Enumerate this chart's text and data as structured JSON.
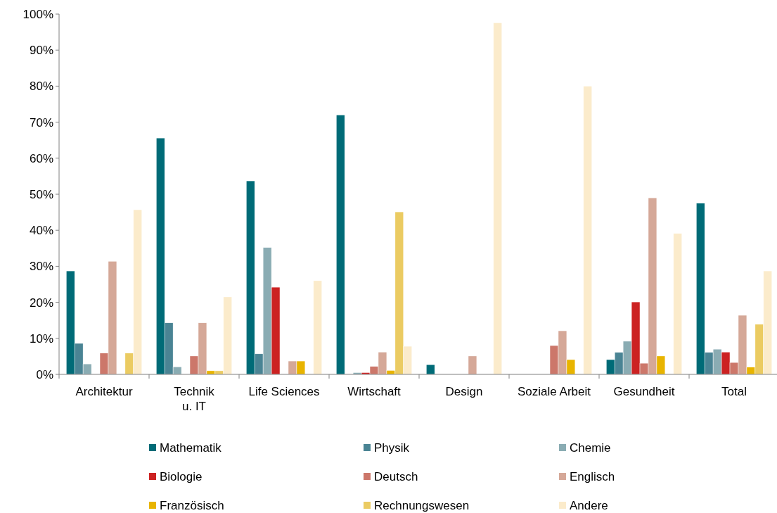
{
  "chart_data": {
    "type": "bar",
    "categories": [
      "Architektur",
      "Technik\nu. IT",
      "Life Sciences",
      "Wirtschaft",
      "Design",
      "Soziale Arbeit",
      "Gesundheit",
      "Total"
    ],
    "series": [
      {
        "name": "Mathematik",
        "color": "#006b77",
        "values": [
          28.7,
          65.6,
          53.7,
          72,
          2.7,
          0,
          4.1,
          47.5
        ]
      },
      {
        "name": "Physik",
        "color": "#4a8494",
        "values": [
          8.6,
          14.3,
          5.7,
          0,
          0,
          0,
          6.1,
          6.1
        ]
      },
      {
        "name": "Chemie",
        "color": "#8aacb3",
        "values": [
          2.9,
          2.1,
          35.2,
          0.5,
          0,
          0,
          9.2,
          7
        ]
      },
      {
        "name": "Biologie",
        "color": "#cc2222",
        "values": [
          0,
          0,
          24.2,
          0.5,
          0,
          0,
          20.1,
          6.2
        ]
      },
      {
        "name": "Deutsch",
        "color": "#cc776a",
        "values": [
          5.9,
          5.1,
          0,
          2.2,
          0,
          8,
          3.1,
          3.3
        ]
      },
      {
        "name": "Englisch",
        "color": "#d5a898",
        "values": [
          31.4,
          14.3,
          3.7,
          6.2,
          5.1,
          12.1,
          49,
          16.4
        ]
      },
      {
        "name": "Französisch",
        "color": "#e8b400",
        "values": [
          0,
          1,
          3.7,
          1.1,
          0,
          4.1,
          5.1,
          2
        ]
      },
      {
        "name": "Rechnungswesen",
        "color": "#ebcb62",
        "values": [
          5.9,
          1,
          0,
          45.1,
          0,
          0,
          0,
          13.9
        ]
      },
      {
        "name": "Andere",
        "color": "#fbebcb",
        "values": [
          45.7,
          21.5,
          26,
          7.8,
          97.6,
          80,
          39.1,
          28.7
        ]
      }
    ],
    "ylim": [
      0,
      100
    ],
    "yticks": [
      {
        "value": 0,
        "label": "0%"
      },
      {
        "value": 10,
        "label": "10%"
      },
      {
        "value": 20,
        "label": "20%"
      },
      {
        "value": 30,
        "label": "30%"
      },
      {
        "value": 40,
        "label": "40%"
      },
      {
        "value": 50,
        "label": "50%"
      },
      {
        "value": 60,
        "label": "60%"
      },
      {
        "value": 70,
        "label": "70%"
      },
      {
        "value": 80,
        "label": "80%"
      },
      {
        "value": 90,
        "label": "90%"
      },
      {
        "value": 100,
        "label": "100%"
      }
    ],
    "grid": false,
    "legend": "bottom"
  }
}
